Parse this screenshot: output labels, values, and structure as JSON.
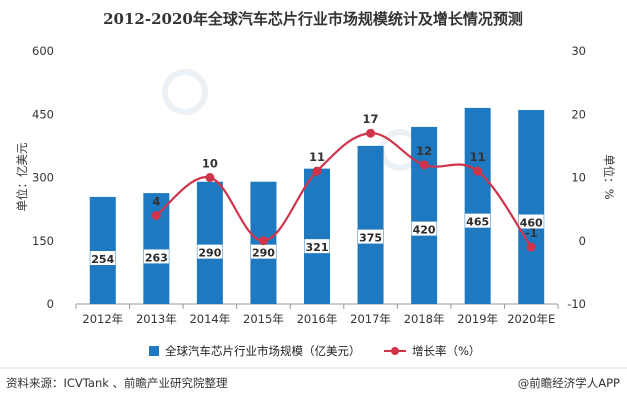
{
  "chart_data": {
    "type": "bar",
    "title": "2012-2020年全球汽车芯片行业市场规模统计及增长情况预测",
    "categories": [
      "2012年",
      "2013年",
      "2014年",
      "2015年",
      "2016年",
      "2017年",
      "2018年",
      "2019年",
      "2020年E"
    ],
    "series": [
      {
        "name": "全球汽车芯片行业市场规模（亿美元）",
        "type": "bar",
        "axis": "left",
        "color": "#1f79c0",
        "values": [
          254,
          263,
          290,
          290,
          321,
          375,
          420,
          465,
          460
        ]
      },
      {
        "name": "增长率（%）",
        "type": "line",
        "axis": "right",
        "color": "#d0344a",
        "values": [
          null,
          4,
          10,
          0,
          11,
          17,
          12,
          11,
          -1
        ]
      }
    ],
    "bar_labels": [
      "254",
      "263",
      "290",
      "290",
      "321",
      "375",
      "420",
      "465",
      "460"
    ],
    "line_labels": [
      "",
      "4",
      "10",
      "",
      "11",
      "17",
      "12",
      "11",
      "-1"
    ],
    "ylabel": "单位：亿美元",
    "y2label": "单位：%",
    "ylim": [
      0,
      600
    ],
    "y2lim": [
      -10,
      30
    ],
    "yticks": [
      "0",
      "150",
      "300",
      "450",
      "600"
    ],
    "y2ticks": [
      "-10",
      "0",
      "10",
      "20",
      "30"
    ],
    "legend_position": "bottom",
    "grid": false
  },
  "footer": {
    "source": "资料来源：ICVTank 、前瞻产业研究院整理",
    "brand": "@前瞻经济学人APP"
  }
}
